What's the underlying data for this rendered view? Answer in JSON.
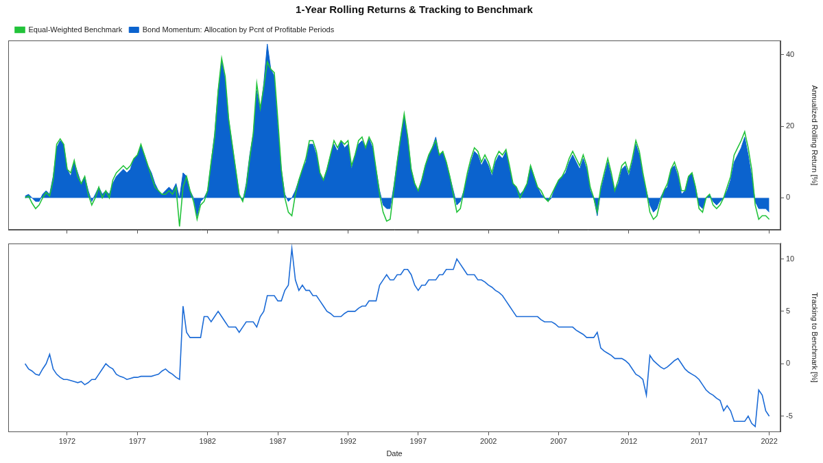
{
  "chart_data": [
    {
      "type": "line",
      "title": "1-Year Rolling Returns & Tracking to Benchmark",
      "y_label": "Annualized Rolling Return [%]",
      "legend": "upper left",
      "grid": false,
      "tick_labels": "y",
      "xlim": [
        1967.8,
        2022.8
      ],
      "xticks": [
        1972,
        1977,
        1982,
        1987,
        1992,
        1997,
        2002,
        2007,
        2012,
        2017,
        2022
      ],
      "ylim": [
        -9,
        44
      ],
      "yticks": [
        0,
        20,
        40
      ],
      "x": [
        1969,
        1969.25,
        1969.5,
        1969.75,
        1970,
        1970.25,
        1970.5,
        1970.75,
        1971,
        1971.25,
        1971.5,
        1971.75,
        1972,
        1972.25,
        1972.5,
        1972.75,
        1973,
        1973.25,
        1973.5,
        1973.75,
        1974,
        1974.25,
        1974.5,
        1974.75,
        1975,
        1975.25,
        1975.5,
        1975.75,
        1976,
        1976.25,
        1976.5,
        1976.75,
        1977,
        1977.25,
        1977.5,
        1977.75,
        1978,
        1978.25,
        1978.5,
        1978.75,
        1979,
        1979.25,
        1979.5,
        1979.75,
        1980,
        1980.25,
        1980.5,
        1980.75,
        1981,
        1981.25,
        1981.5,
        1981.75,
        1982,
        1982.25,
        1982.5,
        1982.75,
        1983,
        1983.25,
        1983.5,
        1983.75,
        1984,
        1984.25,
        1984.5,
        1984.75,
        1985,
        1985.25,
        1985.5,
        1985.75,
        1986,
        1986.25,
        1986.5,
        1986.75,
        1987,
        1987.25,
        1987.5,
        1987.75,
        1988,
        1988.25,
        1988.5,
        1988.75,
        1989,
        1989.25,
        1989.5,
        1989.75,
        1990,
        1990.25,
        1990.5,
        1990.75,
        1991,
        1991.25,
        1991.5,
        1991.75,
        1992,
        1992.25,
        1992.5,
        1992.75,
        1993,
        1993.25,
        1993.5,
        1993.75,
        1994,
        1994.25,
        1994.5,
        1994.75,
        1995,
        1995.25,
        1995.5,
        1995.75,
        1996,
        1996.25,
        1996.5,
        1996.75,
        1997,
        1997.25,
        1997.5,
        1997.75,
        1998,
        1998.25,
        1998.5,
        1998.75,
        1999,
        1999.25,
        1999.5,
        1999.75,
        2000,
        2000.25,
        2000.5,
        2000.75,
        2001,
        2001.25,
        2001.5,
        2001.75,
        2002,
        2002.25,
        2002.5,
        2002.75,
        2003,
        2003.25,
        2003.5,
        2003.75,
        2004,
        2004.25,
        2004.5,
        2004.75,
        2005,
        2005.25,
        2005.5,
        2005.75,
        2006,
        2006.25,
        2006.5,
        2006.75,
        2007,
        2007.25,
        2007.5,
        2007.75,
        2008,
        2008.25,
        2008.5,
        2008.75,
        2009,
        2009.25,
        2009.5,
        2009.75,
        2010,
        2010.25,
        2010.5,
        2010.75,
        2011,
        2011.25,
        2011.5,
        2011.75,
        2012,
        2012.25,
        2012.5,
        2012.75,
        2013,
        2013.25,
        2013.5,
        2013.75,
        2014,
        2014.25,
        2014.5,
        2014.75,
        2015,
        2015.25,
        2015.5,
        2015.75,
        2016,
        2016.25,
        2016.5,
        2016.75,
        2017,
        2017.25,
        2017.5,
        2017.75,
        2018,
        2018.25,
        2018.5,
        2018.75,
        2019,
        2019.25,
        2019.5,
        2019.75,
        2020,
        2020.25,
        2020.5,
        2020.75,
        2021,
        2021.25,
        2021.5,
        2021.75,
        2022
      ],
      "series": [
        {
          "name": "Bond Momentum: Allocation by Pcnt of Profitable Periods",
          "type": "area",
          "color": "#0b63ce",
          "values": [
            0.5,
            1,
            0,
            -1,
            -1,
            1,
            2,
            1,
            6,
            14,
            16,
            15,
            8,
            6,
            10,
            7,
            4,
            6,
            2,
            -1,
            1,
            3,
            1,
            2,
            1,
            4,
            6,
            7,
            8,
            7,
            8,
            11,
            12,
            14.5,
            12,
            9,
            7,
            4,
            2,
            1,
            2,
            3,
            2,
            4,
            0,
            7,
            6,
            2,
            0,
            -5,
            -1,
            0,
            2,
            10,
            18,
            30,
            38,
            33,
            22,
            15,
            8,
            1,
            -1,
            4,
            12,
            18,
            30,
            24,
            32,
            43,
            36,
            34,
            20,
            8,
            1,
            -1,
            0,
            2,
            5,
            8,
            10,
            15,
            15,
            12,
            7,
            5,
            8,
            12,
            15,
            13,
            16,
            14,
            15,
            8,
            12,
            15,
            16,
            14,
            16.5,
            14,
            8,
            2,
            -2,
            -3,
            -3,
            3,
            10,
            17,
            23,
            17,
            8,
            4,
            2,
            5,
            9,
            12,
            14,
            17,
            12,
            13,
            10,
            6,
            2,
            -2,
            -1,
            2,
            6,
            10,
            13,
            12,
            9,
            11,
            9,
            6,
            10,
            12,
            11,
            13,
            8,
            4,
            3,
            1,
            2,
            4,
            9,
            6,
            3,
            1,
            0,
            -1,
            0,
            3,
            5,
            6,
            7,
            10,
            12,
            10,
            8,
            11,
            8,
            2,
            0,
            -5,
            2,
            6,
            10,
            6,
            2,
            4,
            8,
            9,
            6,
            10,
            15,
            12,
            6,
            2,
            -2,
            -4,
            -3,
            0,
            2,
            3,
            8,
            9,
            6,
            1,
            2,
            6,
            7,
            3,
            -2,
            -3,
            0,
            1,
            -1,
            -2,
            -1,
            0,
            2,
            5,
            10,
            12,
            14,
            17,
            12,
            6,
            -1,
            -3,
            -3,
            -3,
            -4
          ]
        },
        {
          "name": "Equal-Weighted Benchmark",
          "type": "line",
          "color": "#22c33a",
          "values": [
            0,
            0.5,
            -1.5,
            -3,
            -2,
            0,
            1.5,
            0.5,
            5,
            15,
            16.5,
            15,
            8,
            7,
            10.5,
            6,
            4,
            6,
            1,
            -2,
            0,
            3,
            0,
            2,
            0,
            5,
            7,
            8,
            9,
            8,
            9,
            11,
            12,
            15,
            12,
            9,
            6,
            3,
            2,
            1,
            1,
            2,
            1,
            3,
            -8,
            3,
            6,
            2,
            -1,
            -6,
            -2,
            -1,
            2,
            10,
            17,
            30,
            39,
            34,
            22,
            15,
            8,
            1,
            -1,
            3,
            11,
            18,
            32,
            25,
            31,
            38,
            36,
            35,
            22,
            8,
            0,
            -4,
            -5,
            1,
            5,
            8,
            11,
            16,
            16,
            13,
            7,
            5,
            8,
            12,
            16,
            14,
            16,
            15,
            16,
            9,
            12,
            16,
            17,
            14,
            17,
            15,
            8,
            1,
            -4,
            -6.5,
            -6,
            2,
            10,
            17,
            23.5,
            17,
            8,
            4,
            2,
            5,
            9,
            12,
            14,
            16,
            12,
            13,
            10,
            6,
            1,
            -4,
            -3,
            2,
            7,
            11,
            14,
            13,
            10,
            12,
            10,
            7,
            11,
            13,
            12,
            13.5,
            9,
            4,
            3,
            0,
            2,
            4,
            9,
            6,
            3,
            2,
            0,
            -1,
            1,
            3,
            5,
            6,
            8,
            11,
            13,
            11,
            9,
            12,
            9,
            3,
            0,
            -4,
            3,
            7,
            11,
            7,
            2,
            5,
            9,
            10,
            7,
            11,
            16,
            13,
            7,
            2,
            -4,
            -6,
            -5,
            -1,
            2,
            4,
            8,
            10,
            7,
            2,
            2,
            6,
            7,
            3,
            -3,
            -4,
            0,
            1,
            -2,
            -3,
            -2,
            0,
            3,
            6,
            12,
            14,
            16,
            18.5,
            14,
            8,
            -2,
            -6,
            -5,
            -5,
            -6
          ]
        }
      ]
    },
    {
      "type": "line",
      "x_label": "Date",
      "y_label": "Tracking to Benchmark [%]",
      "grid": false,
      "xlim": [
        1967.8,
        2022.8
      ],
      "xticks": [
        1972,
        1977,
        1982,
        1987,
        1992,
        1997,
        2002,
        2007,
        2012,
        2017,
        2022
      ],
      "ylim": [
        -6.5,
        11.5
      ],
      "yticks": [
        -5,
        0,
        5,
        10
      ],
      "x": [
        1969,
        1969.25,
        1969.5,
        1969.75,
        1970,
        1970.25,
        1970.5,
        1970.75,
        1971,
        1971.25,
        1971.5,
        1971.75,
        1972,
        1972.25,
        1972.5,
        1972.75,
        1973,
        1973.25,
        1973.5,
        1973.75,
        1974,
        1974.25,
        1974.5,
        1974.75,
        1975,
        1975.25,
        1975.5,
        1975.75,
        1976,
        1976.25,
        1976.5,
        1976.75,
        1977,
        1977.25,
        1977.5,
        1977.75,
        1978,
        1978.25,
        1978.5,
        1978.75,
        1979,
        1979.25,
        1979.5,
        1979.75,
        1980,
        1980.25,
        1980.5,
        1980.75,
        1981,
        1981.25,
        1981.5,
        1981.75,
        1982,
        1982.25,
        1982.5,
        1982.75,
        1983,
        1983.25,
        1983.5,
        1983.75,
        1984,
        1984.25,
        1984.5,
        1984.75,
        1985,
        1985.25,
        1985.5,
        1985.75,
        1986,
        1986.25,
        1986.5,
        1986.75,
        1987,
        1987.25,
        1987.5,
        1987.75,
        1988,
        1988.25,
        1988.5,
        1988.75,
        1989,
        1989.25,
        1989.5,
        1989.75,
        1990,
        1990.25,
        1990.5,
        1990.75,
        1991,
        1991.25,
        1991.5,
        1991.75,
        1992,
        1992.25,
        1992.5,
        1992.75,
        1993,
        1993.25,
        1993.5,
        1993.75,
        1994,
        1994.25,
        1994.5,
        1994.75,
        1995,
        1995.25,
        1995.5,
        1995.75,
        1996,
        1996.25,
        1996.5,
        1996.75,
        1997,
        1997.25,
        1997.5,
        1997.75,
        1998,
        1998.25,
        1998.5,
        1998.75,
        1999,
        1999.25,
        1999.5,
        1999.75,
        2000,
        2000.25,
        2000.5,
        2000.75,
        2001,
        2001.25,
        2001.5,
        2001.75,
        2002,
        2002.25,
        2002.5,
        2002.75,
        2003,
        2003.25,
        2003.5,
        2003.75,
        2004,
        2004.25,
        2004.5,
        2004.75,
        2005,
        2005.25,
        2005.5,
        2005.75,
        2006,
        2006.25,
        2006.5,
        2006.75,
        2007,
        2007.25,
        2007.5,
        2007.75,
        2008,
        2008.25,
        2008.5,
        2008.75,
        2009,
        2009.25,
        2009.5,
        2009.75,
        2010,
        2010.25,
        2010.5,
        2010.75,
        2011,
        2011.25,
        2011.5,
        2011.75,
        2012,
        2012.25,
        2012.5,
        2012.75,
        2013,
        2013.25,
        2013.5,
        2013.75,
        2014,
        2014.25,
        2014.5,
        2014.75,
        2015,
        2015.25,
        2015.5,
        2015.75,
        2016,
        2016.25,
        2016.5,
        2016.75,
        2017,
        2017.25,
        2017.5,
        2017.75,
        2018,
        2018.25,
        2018.5,
        2018.75,
        2019,
        2019.25,
        2019.5,
        2019.75,
        2020,
        2020.25,
        2020.5,
        2020.75,
        2021,
        2021.25,
        2021.5,
        2021.75,
        2022
      ],
      "series": [
        {
          "type": "line",
          "color": "#1a6ad6",
          "values": [
            0,
            -0.5,
            -0.7,
            -1,
            -1.1,
            -0.5,
            0,
            0.9,
            -0.5,
            -1,
            -1.3,
            -1.5,
            -1.5,
            -1.6,
            -1.7,
            -1.8,
            -1.7,
            -2,
            -1.8,
            -1.5,
            -1.5,
            -1,
            -0.5,
            0,
            -0.3,
            -0.5,
            -1,
            -1.2,
            -1.3,
            -1.5,
            -1.4,
            -1.3,
            -1.3,
            -1.2,
            -1.2,
            -1.2,
            -1.2,
            -1.1,
            -1,
            -0.7,
            -0.5,
            -0.8,
            -1,
            -1.3,
            -1.5,
            5.5,
            3,
            2.5,
            2.5,
            2.5,
            2.5,
            4.5,
            4.5,
            4,
            4.5,
            5,
            4.5,
            4,
            3.5,
            3.5,
            3.5,
            3,
            3.5,
            4,
            4,
            4,
            3.5,
            4.5,
            5,
            6.5,
            6.5,
            6.5,
            6,
            6,
            7,
            7.5,
            11,
            8,
            7,
            7.5,
            7,
            7,
            6.5,
            6.5,
            6,
            5.5,
            5,
            4.8,
            4.5,
            4.5,
            4.5,
            4.8,
            5,
            5,
            5,
            5.3,
            5.5,
            5.5,
            6,
            6,
            6,
            7.5,
            8,
            8.5,
            8,
            8,
            8.5,
            8.5,
            9,
            9,
            8.5,
            7.5,
            7,
            7.5,
            7.5,
            8,
            8,
            8,
            8.5,
            8.5,
            9,
            9,
            9,
            10,
            9.5,
            9,
            8.5,
            8.5,
            8.5,
            8,
            8,
            7.8,
            7.5,
            7.3,
            7,
            6.8,
            6.5,
            6,
            5.5,
            5,
            4.5,
            4.5,
            4.5,
            4.5,
            4.5,
            4.5,
            4.5,
            4.2,
            4,
            4,
            4,
            3.8,
            3.5,
            3.5,
            3.5,
            3.5,
            3.5,
            3.2,
            3,
            2.8,
            2.5,
            2.5,
            2.5,
            3,
            1.5,
            1.2,
            1,
            0.8,
            0.5,
            0.5,
            0.5,
            0.3,
            0,
            -0.5,
            -1,
            -1.2,
            -1.5,
            -3,
            0.8,
            0.3,
            0,
            -0.3,
            -0.5,
            -0.3,
            0,
            0.3,
            0.5,
            0,
            -0.5,
            -0.8,
            -1,
            -1.2,
            -1.5,
            -2,
            -2.5,
            -2.8,
            -3,
            -3.3,
            -3.5,
            -4.5,
            -4,
            -4.5,
            -5.5,
            -5.5,
            -5.5,
            -5.5,
            -5,
            -5.7,
            -6,
            -2.5,
            -3,
            -4.5,
            -5
          ]
        }
      ]
    }
  ]
}
